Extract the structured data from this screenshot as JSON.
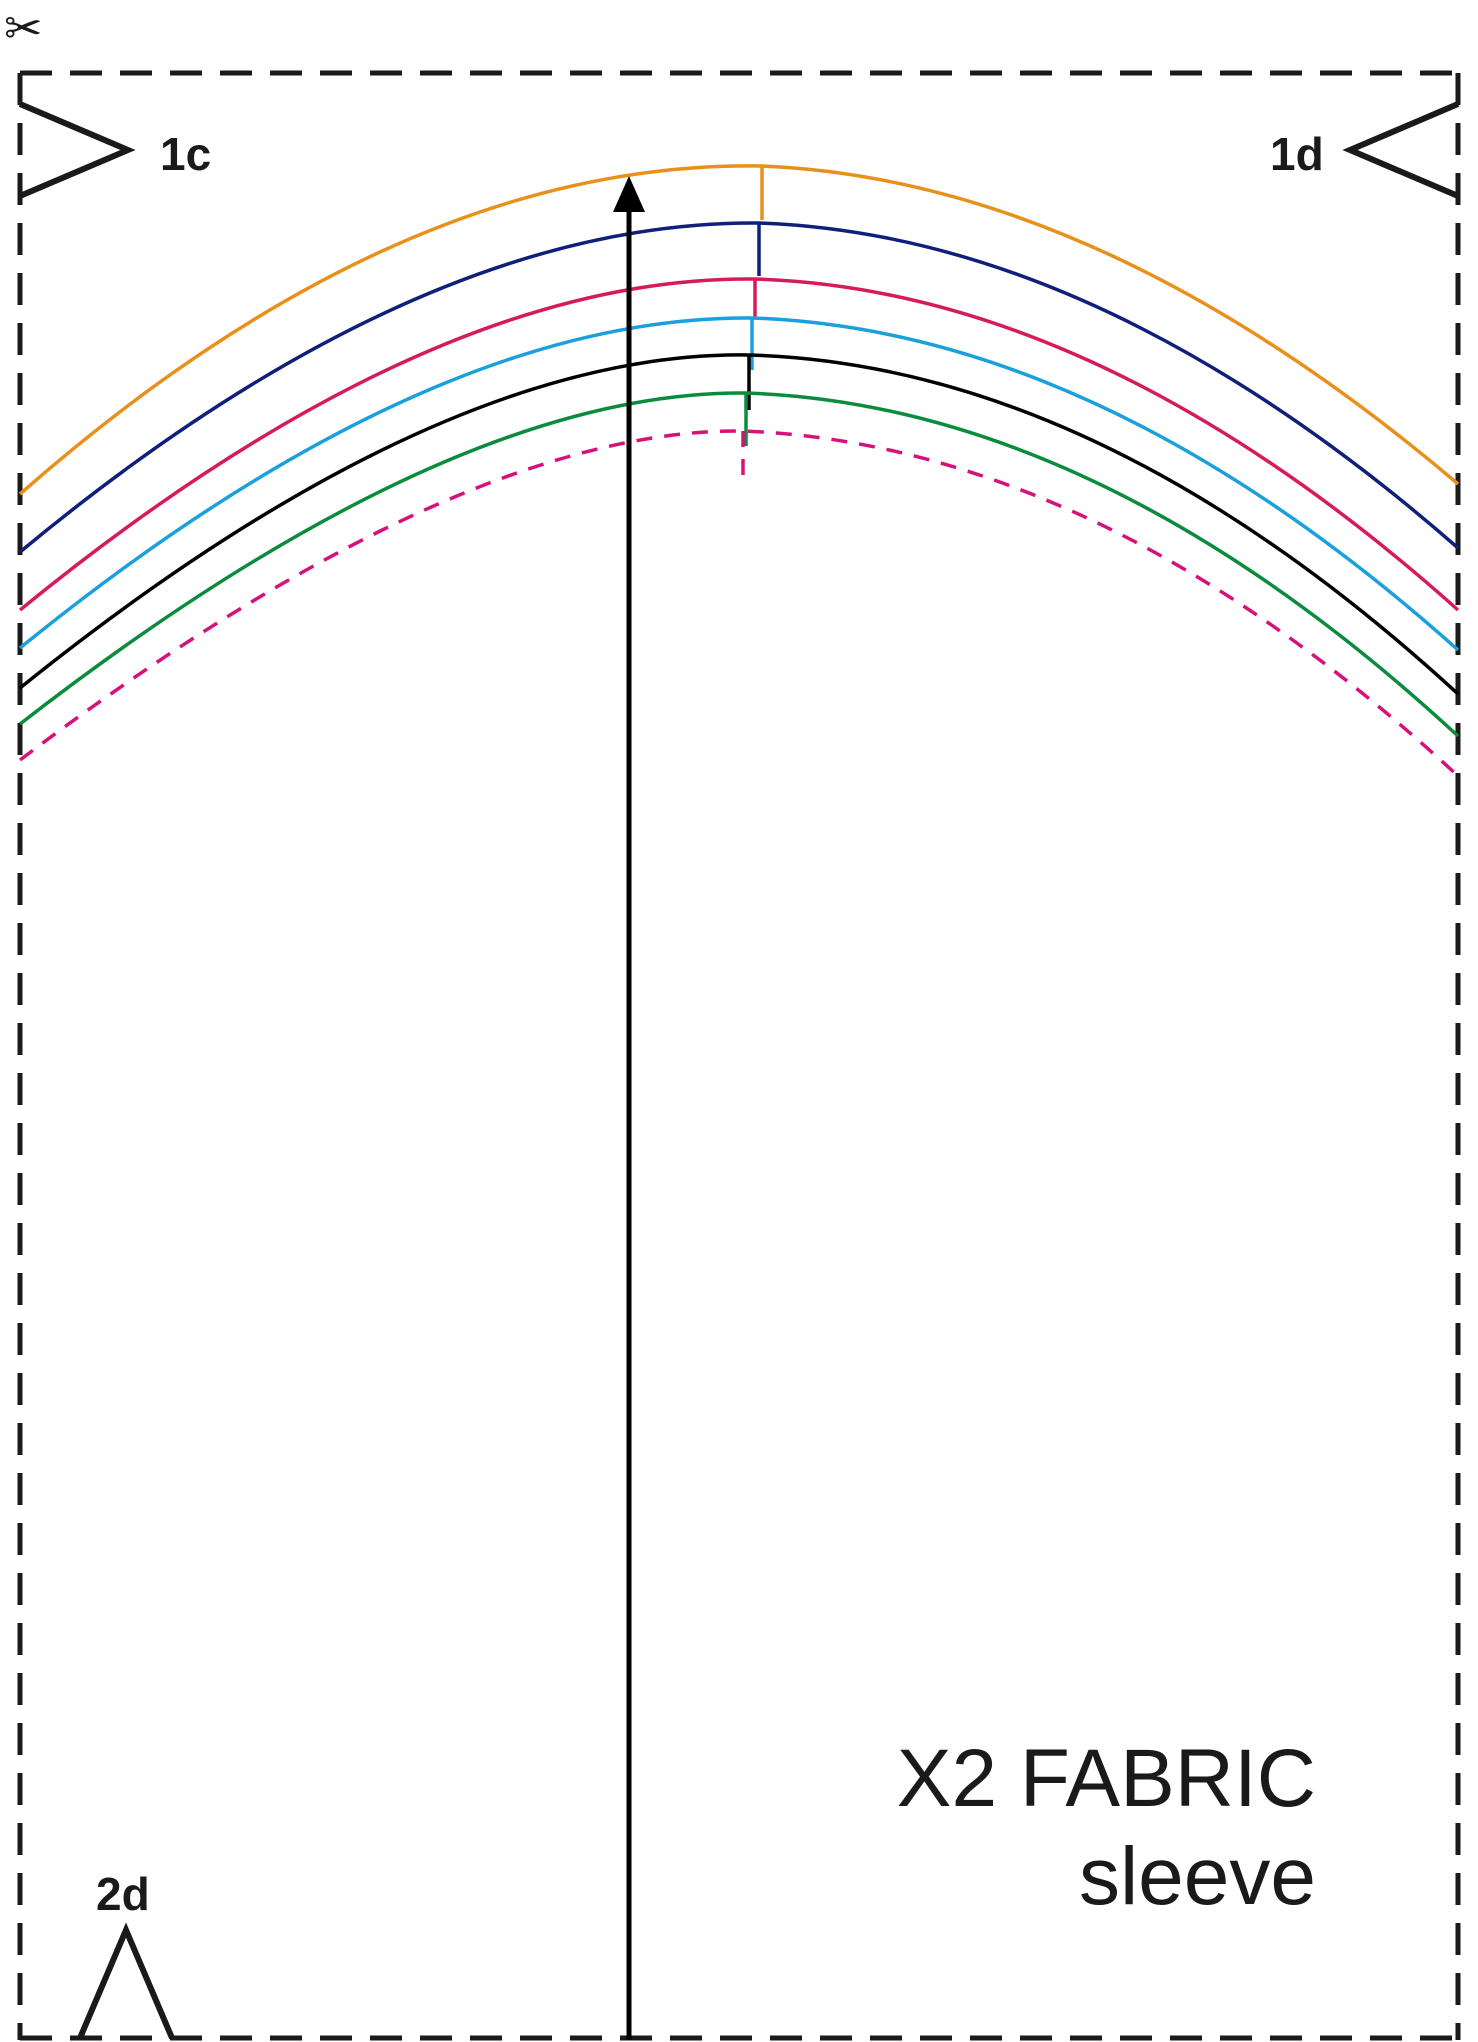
{
  "page": {
    "scissors_glyph": "✂",
    "labels": {
      "notch_top_left": "1c",
      "notch_top_right": "1d",
      "notch_bottom_left": "2d"
    },
    "title": {
      "line1": "X2 FABRIC",
      "line2": "sleeve"
    }
  },
  "colors": {
    "border": "#1a1a1a",
    "grainline": "#000000",
    "size_lines": [
      "#e8901a",
      "#0f1f7a",
      "#d61a5a",
      "#1aa0dc",
      "#000000",
      "#0a8c3c"
    ],
    "seam_dashed": "#d6127a"
  }
}
